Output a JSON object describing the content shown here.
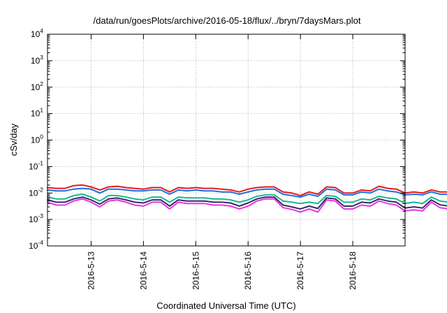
{
  "chart_data": {
    "type": "line",
    "title": "/data/run/goesPlots/archive/2016-05-18/flux/../bryn/7daysMars.plot",
    "xlabel": "Coordinated Universal Time (UTC)",
    "ylabel": "cSv/day",
    "y_scale": "log",
    "ylim_exponents": [
      -4,
      4
    ],
    "y_tick_base": "10",
    "y_tick_exponents": [
      "-4",
      "-3",
      "-2",
      "-1",
      "0",
      "1",
      "2",
      "3",
      "4"
    ],
    "x_domain": [
      "2016-05-12T04:00",
      "2016-05-19T00:00"
    ],
    "x_ticks": [
      "2016-5-13",
      "2016-5-14",
      "2016-5-15",
      "2016-5-16",
      "2016-5-17",
      "2016-5-18"
    ],
    "grid": true,
    "legend": "none",
    "sample_interval_hours": 4,
    "series": [
      {
        "color": "#e41a1c",
        "values": [
          0.016,
          0.015,
          0.015,
          0.019,
          0.02,
          0.017,
          0.013,
          0.017,
          0.018,
          0.016,
          0.015,
          0.014,
          0.016,
          0.016,
          0.011,
          0.016,
          0.015,
          0.016,
          0.015,
          0.015,
          0.014,
          0.013,
          0.011,
          0.014,
          0.016,
          0.017,
          0.017,
          0.011,
          0.01,
          0.008,
          0.011,
          0.009,
          0.017,
          0.016,
          0.01,
          0.01,
          0.013,
          0.012,
          0.018,
          0.015,
          0.014,
          0.01,
          0.011,
          0.01,
          0.013,
          0.011,
          0.011,
          0.011,
          0.01,
          0.012,
          0.012,
          0.01,
          0.015,
          0.012,
          0.012,
          0.012,
          0.012,
          0.011,
          0.01,
          0.011,
          0.01,
          0.012,
          0.01,
          0.01,
          0.01,
          0.011,
          0.01,
          0.009,
          0.01,
          0.01,
          0.01,
          0.011,
          0.012,
          0.013,
          0.014
        ]
      },
      {
        "color": "#1f6fe0",
        "values": [
          0.013,
          0.012,
          0.012,
          0.014,
          0.015,
          0.014,
          0.01,
          0.014,
          0.014,
          0.013,
          0.012,
          0.012,
          0.013,
          0.013,
          0.009,
          0.013,
          0.012,
          0.013,
          0.012,
          0.012,
          0.011,
          0.011,
          0.009,
          0.011,
          0.013,
          0.014,
          0.014,
          0.009,
          0.008,
          0.007,
          0.009,
          0.0075,
          0.014,
          0.013,
          0.0085,
          0.0085,
          0.011,
          0.01,
          0.014,
          0.012,
          0.011,
          0.0085,
          0.009,
          0.0085,
          0.011,
          0.009,
          0.009,
          0.009,
          0.0085,
          0.01,
          0.01,
          0.0085,
          0.012,
          0.01,
          0.01,
          0.01,
          0.01,
          0.009,
          0.0085,
          0.009,
          0.0085,
          0.01,
          0.0085,
          0.0085,
          0.0085,
          0.009,
          0.0085,
          0.0075,
          0.0085,
          0.0085,
          0.0085,
          0.009,
          0.01,
          0.011,
          0.012
        ]
      },
      {
        "color": "#17b890",
        "values": [
          0.007,
          0.006,
          0.006,
          0.008,
          0.009,
          0.007,
          0.005,
          0.008,
          0.008,
          0.007,
          0.006,
          0.0055,
          0.007,
          0.007,
          0.0045,
          0.007,
          0.0065,
          0.0065,
          0.0065,
          0.006,
          0.006,
          0.0055,
          0.0045,
          0.0055,
          0.0075,
          0.0085,
          0.0085,
          0.005,
          0.0045,
          0.004,
          0.0045,
          0.004,
          0.008,
          0.0075,
          0.0045,
          0.0045,
          0.006,
          0.0055,
          0.0075,
          0.0065,
          0.006,
          0.004,
          0.0045,
          0.004,
          0.007,
          0.005,
          0.0045,
          0.0045,
          0.0042,
          0.0055,
          0.0055,
          0.0042,
          0.0075,
          0.0055,
          0.0055,
          0.0055,
          0.0055,
          0.005,
          0.0042,
          0.005,
          0.0045,
          0.0055,
          0.0045,
          0.0045,
          0.0045,
          0.005,
          0.0045,
          0.0038,
          0.0045,
          0.0045,
          0.0045,
          0.005,
          0.0055,
          0.006,
          0.0065
        ]
      },
      {
        "color": "#3a2a66",
        "values": [
          0.0055,
          0.0045,
          0.0045,
          0.006,
          0.007,
          0.0055,
          0.0038,
          0.006,
          0.0065,
          0.0055,
          0.0045,
          0.0042,
          0.0055,
          0.0055,
          0.0032,
          0.0055,
          0.005,
          0.005,
          0.005,
          0.0045,
          0.0045,
          0.0042,
          0.0032,
          0.0042,
          0.006,
          0.007,
          0.007,
          0.0035,
          0.003,
          0.0025,
          0.0032,
          0.0026,
          0.0065,
          0.006,
          0.0032,
          0.0032,
          0.0045,
          0.0042,
          0.006,
          0.005,
          0.0045,
          0.0027,
          0.003,
          0.0027,
          0.0055,
          0.0036,
          0.0032,
          0.0032,
          0.003,
          0.0042,
          0.0042,
          0.003,
          0.006,
          0.0042,
          0.0042,
          0.0042,
          0.0042,
          0.0036,
          0.003,
          0.0036,
          0.0032,
          0.0042,
          0.0032,
          0.0032,
          0.0032,
          0.0036,
          0.0032,
          0.0026,
          0.0032,
          0.0032,
          0.0032,
          0.0036,
          0.0042,
          0.0045,
          0.005
        ]
      },
      {
        "color": "#e535e5",
        "values": [
          0.0045,
          0.0035,
          0.0035,
          0.005,
          0.006,
          0.0045,
          0.003,
          0.005,
          0.0055,
          0.0045,
          0.0035,
          0.0032,
          0.0045,
          0.0045,
          0.0025,
          0.0045,
          0.004,
          0.004,
          0.004,
          0.0035,
          0.0035,
          0.0032,
          0.0025,
          0.0032,
          0.005,
          0.006,
          0.006,
          0.0028,
          0.0024,
          0.0019,
          0.0025,
          0.0019,
          0.0055,
          0.005,
          0.0025,
          0.0025,
          0.0035,
          0.0032,
          0.005,
          0.004,
          0.0035,
          0.0021,
          0.0023,
          0.0021,
          0.0045,
          0.0028,
          0.0025,
          0.0025,
          0.0023,
          0.0032,
          0.0032,
          0.0023,
          0.005,
          0.0032,
          0.0032,
          0.0032,
          0.0032,
          0.0028,
          0.0023,
          0.0028,
          0.0025,
          0.0032,
          0.0025,
          0.0025,
          0.0025,
          0.0028,
          0.0025,
          0.0019,
          0.0025,
          0.0025,
          0.0025,
          0.0028,
          0.0032,
          0.0035,
          0.004
        ]
      }
    ]
  }
}
